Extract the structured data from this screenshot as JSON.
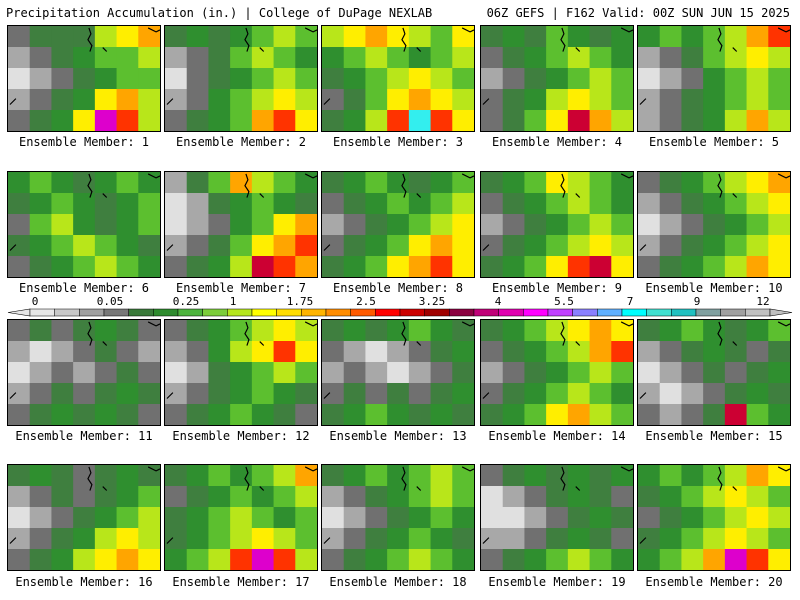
{
  "header": {
    "left": "Precipitation Accumulation (in.) | College of DuPage NEXLAB",
    "right": "06Z GEFS | F162 Valid: 00Z SUN JUN 15 2025"
  },
  "panel_label_prefix": "Ensemble Member:",
  "members": [
    {
      "number": "1",
      "pattern": [
        [
          2,
          3,
          3,
          3,
          6,
          7,
          8
        ],
        [
          1,
          2,
          3,
          4,
          5,
          5,
          6
        ],
        [
          0,
          1,
          2,
          3,
          4,
          5,
          5
        ],
        [
          1,
          2,
          3,
          4,
          7,
          8,
          6
        ],
        [
          2,
          3,
          4,
          7,
          11,
          9,
          6
        ]
      ]
    },
    {
      "number": "2",
      "pattern": [
        [
          3,
          4,
          3,
          4,
          5,
          6,
          5
        ],
        [
          1,
          2,
          3,
          5,
          6,
          5,
          4
        ],
        [
          0,
          2,
          3,
          4,
          5,
          6,
          5
        ],
        [
          1,
          2,
          4,
          5,
          6,
          7,
          6
        ],
        [
          2,
          3,
          4,
          5,
          8,
          9,
          7
        ]
      ]
    },
    {
      "number": "3",
      "pattern": [
        [
          6,
          7,
          8,
          7,
          6,
          5,
          7
        ],
        [
          4,
          5,
          6,
          5,
          4,
          5,
          6
        ],
        [
          3,
          4,
          5,
          6,
          7,
          6,
          5
        ],
        [
          2,
          3,
          5,
          7,
          8,
          7,
          6
        ],
        [
          3,
          4,
          6,
          9,
          12,
          9,
          7
        ]
      ]
    },
    {
      "number": "4",
      "pattern": [
        [
          3,
          4,
          3,
          5,
          4,
          3,
          4
        ],
        [
          2,
          3,
          4,
          5,
          6,
          5,
          4
        ],
        [
          1,
          2,
          3,
          4,
          5,
          6,
          5
        ],
        [
          2,
          3,
          4,
          6,
          7,
          6,
          5
        ],
        [
          2,
          3,
          5,
          7,
          10,
          8,
          6
        ]
      ]
    },
    {
      "number": "5",
      "pattern": [
        [
          4,
          5,
          4,
          5,
          6,
          8,
          9
        ],
        [
          1,
          2,
          3,
          5,
          6,
          7,
          6
        ],
        [
          0,
          1,
          2,
          4,
          5,
          6,
          5
        ],
        [
          1,
          2,
          3,
          4,
          5,
          6,
          5
        ],
        [
          1,
          2,
          3,
          4,
          6,
          8,
          6
        ]
      ]
    },
    {
      "number": "6",
      "pattern": [
        [
          4,
          5,
          4,
          3,
          4,
          5,
          4
        ],
        [
          3,
          4,
          5,
          4,
          3,
          4,
          5
        ],
        [
          2,
          5,
          6,
          4,
          3,
          4,
          5
        ],
        [
          3,
          4,
          5,
          6,
          5,
          4,
          3
        ],
        [
          2,
          3,
          4,
          5,
          6,
          5,
          4
        ]
      ]
    },
    {
      "number": "7",
      "pattern": [
        [
          1,
          3,
          5,
          8,
          6,
          5,
          4
        ],
        [
          0,
          1,
          3,
          4,
          5,
          4,
          3
        ],
        [
          0,
          1,
          2,
          4,
          5,
          7,
          8
        ],
        [
          1,
          2,
          3,
          5,
          7,
          8,
          9
        ],
        [
          2,
          3,
          4,
          6,
          10,
          9,
          8
        ]
      ]
    },
    {
      "number": "8",
      "pattern": [
        [
          3,
          4,
          5,
          4,
          3,
          4,
          5
        ],
        [
          2,
          3,
          4,
          5,
          4,
          5,
          6
        ],
        [
          1,
          2,
          3,
          4,
          5,
          6,
          7
        ],
        [
          2,
          3,
          4,
          5,
          7,
          8,
          7
        ],
        [
          3,
          4,
          5,
          7,
          8,
          9,
          7
        ]
      ]
    },
    {
      "number": "9",
      "pattern": [
        [
          3,
          4,
          5,
          7,
          6,
          5,
          4
        ],
        [
          2,
          3,
          4,
          5,
          6,
          5,
          4
        ],
        [
          1,
          2,
          3,
          4,
          5,
          6,
          5
        ],
        [
          2,
          3,
          4,
          5,
          6,
          7,
          6
        ],
        [
          3,
          4,
          5,
          7,
          9,
          10,
          7
        ]
      ]
    },
    {
      "number": "10",
      "pattern": [
        [
          2,
          3,
          4,
          5,
          6,
          7,
          8
        ],
        [
          1,
          2,
          3,
          4,
          5,
          6,
          7
        ],
        [
          0,
          1,
          2,
          3,
          4,
          5,
          6
        ],
        [
          1,
          2,
          3,
          4,
          5,
          6,
          7
        ],
        [
          2,
          3,
          4,
          5,
          6,
          8,
          7
        ]
      ]
    },
    {
      "number": "11",
      "pattern": [
        [
          2,
          3,
          2,
          3,
          4,
          3,
          2
        ],
        [
          1,
          0,
          1,
          2,
          3,
          2,
          1
        ],
        [
          0,
          1,
          2,
          1,
          2,
          3,
          2
        ],
        [
          1,
          2,
          3,
          2,
          3,
          4,
          3
        ],
        [
          2,
          3,
          4,
          3,
          4,
          3,
          2
        ]
      ]
    },
    {
      "number": "12",
      "pattern": [
        [
          2,
          3,
          4,
          5,
          6,
          7,
          6
        ],
        [
          1,
          2,
          4,
          6,
          7,
          9,
          7
        ],
        [
          0,
          1,
          3,
          4,
          5,
          6,
          5
        ],
        [
          1,
          2,
          3,
          4,
          5,
          4,
          3
        ],
        [
          2,
          3,
          4,
          5,
          4,
          3,
          2
        ]
      ]
    },
    {
      "number": "13",
      "pattern": [
        [
          3,
          4,
          3,
          4,
          5,
          4,
          3
        ],
        [
          2,
          1,
          0,
          1,
          2,
          3,
          4
        ],
        [
          1,
          2,
          1,
          0,
          1,
          2,
          3
        ],
        [
          2,
          3,
          2,
          3,
          2,
          3,
          4
        ],
        [
          3,
          4,
          5,
          4,
          3,
          4,
          3
        ]
      ]
    },
    {
      "number": "14",
      "pattern": [
        [
          3,
          4,
          5,
          6,
          7,
          8,
          7
        ],
        [
          2,
          3,
          4,
          5,
          6,
          8,
          9
        ],
        [
          1,
          2,
          3,
          4,
          5,
          6,
          5
        ],
        [
          2,
          3,
          4,
          5,
          6,
          5,
          4
        ],
        [
          3,
          4,
          5,
          7,
          8,
          6,
          5
        ]
      ]
    },
    {
      "number": "15",
      "pattern": [
        [
          3,
          4,
          5,
          4,
          3,
          4,
          5
        ],
        [
          1,
          2,
          3,
          4,
          3,
          2,
          3
        ],
        [
          0,
          1,
          2,
          3,
          2,
          3,
          4
        ],
        [
          1,
          0,
          1,
          2,
          3,
          4,
          3
        ],
        [
          2,
          1,
          2,
          3,
          10,
          5,
          4
        ]
      ]
    },
    {
      "number": "16",
      "pattern": [
        [
          3,
          4,
          3,
          2,
          3,
          4,
          3
        ],
        [
          1,
          2,
          3,
          2,
          3,
          4,
          5
        ],
        [
          0,
          1,
          2,
          3,
          4,
          5,
          6
        ],
        [
          1,
          2,
          3,
          4,
          6,
          7,
          6
        ],
        [
          2,
          3,
          4,
          6,
          7,
          8,
          7
        ]
      ]
    },
    {
      "number": "17",
      "pattern": [
        [
          3,
          4,
          5,
          4,
          5,
          6,
          8
        ],
        [
          2,
          3,
          4,
          5,
          4,
          5,
          6
        ],
        [
          3,
          4,
          5,
          6,
          5,
          4,
          5
        ],
        [
          3,
          4,
          5,
          6,
          7,
          6,
          5
        ],
        [
          4,
          5,
          6,
          9,
          11,
          9,
          6
        ]
      ]
    },
    {
      "number": "18",
      "pattern": [
        [
          3,
          4,
          5,
          4,
          5,
          6,
          5
        ],
        [
          1,
          2,
          3,
          4,
          5,
          6,
          5
        ],
        [
          0,
          1,
          2,
          3,
          4,
          5,
          4
        ],
        [
          1,
          2,
          3,
          4,
          5,
          4,
          3
        ],
        [
          2,
          3,
          4,
          5,
          6,
          5,
          4
        ]
      ]
    },
    {
      "number": "19",
      "pattern": [
        [
          2,
          3,
          4,
          3,
          4,
          3,
          4
        ],
        [
          0,
          1,
          2,
          3,
          4,
          3,
          2
        ],
        [
          0,
          0,
          1,
          2,
          3,
          4,
          3
        ],
        [
          1,
          1,
          2,
          3,
          4,
          3,
          2
        ],
        [
          2,
          3,
          4,
          5,
          6,
          5,
          4
        ]
      ]
    },
    {
      "number": "20",
      "pattern": [
        [
          4,
          5,
          4,
          5,
          6,
          8,
          7
        ],
        [
          3,
          4,
          5,
          6,
          7,
          6,
          5
        ],
        [
          2,
          3,
          4,
          5,
          6,
          7,
          6
        ],
        [
          3,
          4,
          5,
          6,
          7,
          6,
          5
        ],
        [
          4,
          5,
          6,
          8,
          11,
          9,
          7
        ]
      ]
    }
  ],
  "colorbar": {
    "tick_labels": [
      "0",
      "0.05",
      "0.25",
      "1",
      "1.75",
      "2.5",
      "3.25",
      "4",
      "5.5",
      "7",
      "9",
      "12"
    ],
    "colors": [
      "#e6e6e6",
      "#c8c8c8",
      "#a0a0a0",
      "#787878",
      "#3a7a3a",
      "#2e8b2e",
      "#4db33d",
      "#7ccd3a",
      "#b5e61d",
      "#ffff00",
      "#ffdd00",
      "#ffb400",
      "#ff8c00",
      "#ff5a00",
      "#ff0000",
      "#cc0000",
      "#a00000",
      "#8b0040",
      "#c00078",
      "#e000b0",
      "#ff00ff",
      "#c040ff",
      "#8a80ff",
      "#60b0ff",
      "#00ffff",
      "#40e0d0",
      "#20c0c0",
      "#80a0a0",
      "#a0a0a0",
      "#c0c0c0"
    ]
  }
}
